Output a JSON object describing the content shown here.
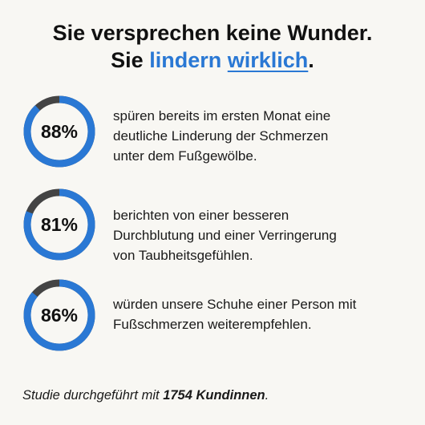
{
  "headline": {
    "line1": "Sie versprechen keine Wunder.",
    "line2_prefix": "Sie",
    "line2_highlight": "lindern",
    "line2_underlined": "wirklich",
    "line2_suffix": "."
  },
  "colors": {
    "accent": "#2a78d4",
    "ring_track": "#444444",
    "background": "#f8f7f3"
  },
  "stats": [
    {
      "percent_label": "88%",
      "value": 88,
      "lines": [
        "spüren bereits im ersten Monat eine",
        "deutliche Linderung der Schmerzen",
        "unter dem Fußgewölbe."
      ]
    },
    {
      "percent_label": "81%",
      "value": 81,
      "lines": [
        "berichten von einer besseren",
        "Durchblutung und einer Verringerung",
        "von Taubheitsgefühlen."
      ]
    },
    {
      "percent_label": "86%",
      "value": 86,
      "lines": [
        "würden unsere Schuhe einer Person mit",
        "Fußschmerzen weiterempfehlen."
      ]
    }
  ],
  "footer": {
    "prefix": "Studie durchgeführt mit ",
    "bold": "1754 Kundinnen",
    "suffix": "."
  }
}
